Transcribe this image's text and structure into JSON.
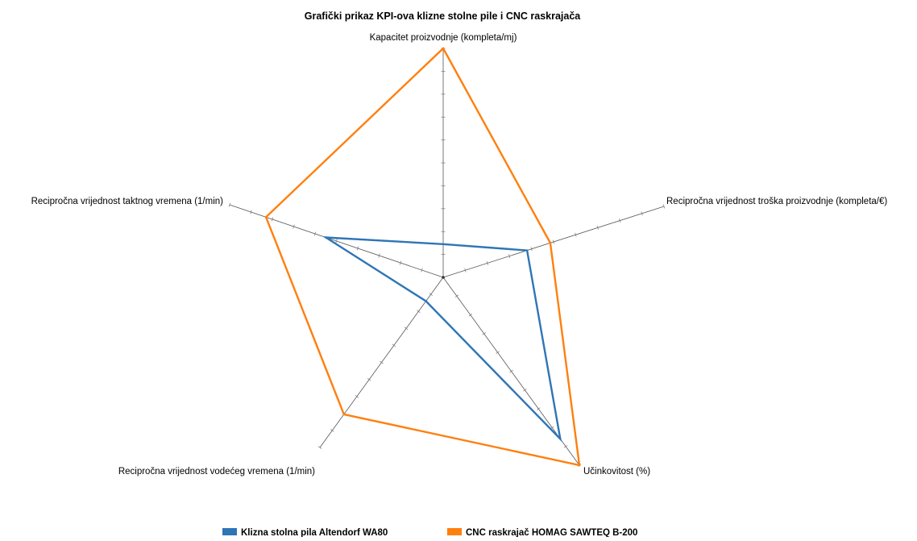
{
  "chart_data": {
    "type": "radar",
    "title": "Grafički prikaz KPI-ova klizne stolne pile i CNC raskrajača",
    "axes": [
      "Kapacitet proizvodnje (kompleta/mj)",
      "Recipročna vrijednost troška proizvodnje (kompleta/€)",
      "Učinkovitost (%)",
      "Recipročna vrijednost vodećeg vremena (1/min)",
      "Recipročna vrijednost taktnog vremena (1/min)"
    ],
    "series": [
      {
        "name": "Klizna stolna pila Altendorf WA80",
        "color": "#2e75b6",
        "values": [
          0.145,
          0.38,
          0.86,
          0.14,
          0.55
        ]
      },
      {
        "name": "CNC raskrajač HOMAG SAWTEQ B-200",
        "color": "#ff7f0e",
        "values": [
          1.0,
          0.485,
          1.0,
          0.805,
          0.83
        ]
      }
    ],
    "range": [
      0,
      1
    ],
    "grid": false,
    "legend_position": "bottom"
  }
}
